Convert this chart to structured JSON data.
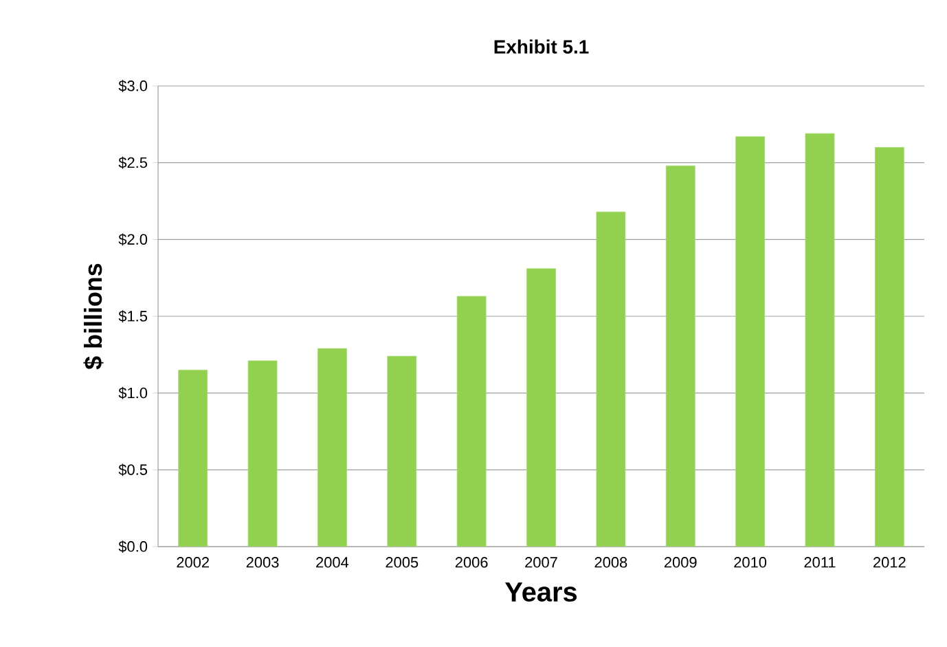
{
  "chart_data": {
    "type": "bar",
    "title": "Exhibit 5.1",
    "xlabel": "Years",
    "ylabel": "$ billions",
    "categories": [
      "2002",
      "2003",
      "2004",
      "2005",
      "2006",
      "2007",
      "2008",
      "2009",
      "2010",
      "2011",
      "2012"
    ],
    "values": [
      1.15,
      1.21,
      1.29,
      1.24,
      1.63,
      1.81,
      2.18,
      2.48,
      2.67,
      2.69,
      2.6
    ],
    "color": "#92d050",
    "ylim": [
      0,
      3
    ],
    "yticks": [
      {
        "value": 0,
        "label": "$0.0"
      },
      {
        "value": 0.5,
        "label": "$0.5"
      },
      {
        "value": 1,
        "label": "$1.0"
      },
      {
        "value": 1.5,
        "label": "$1.5"
      },
      {
        "value": 2,
        "label": "$2.0"
      },
      {
        "value": 2.5,
        "label": "$2.5"
      },
      {
        "value": 3,
        "label": "$3.0"
      }
    ],
    "grid": "y"
  }
}
